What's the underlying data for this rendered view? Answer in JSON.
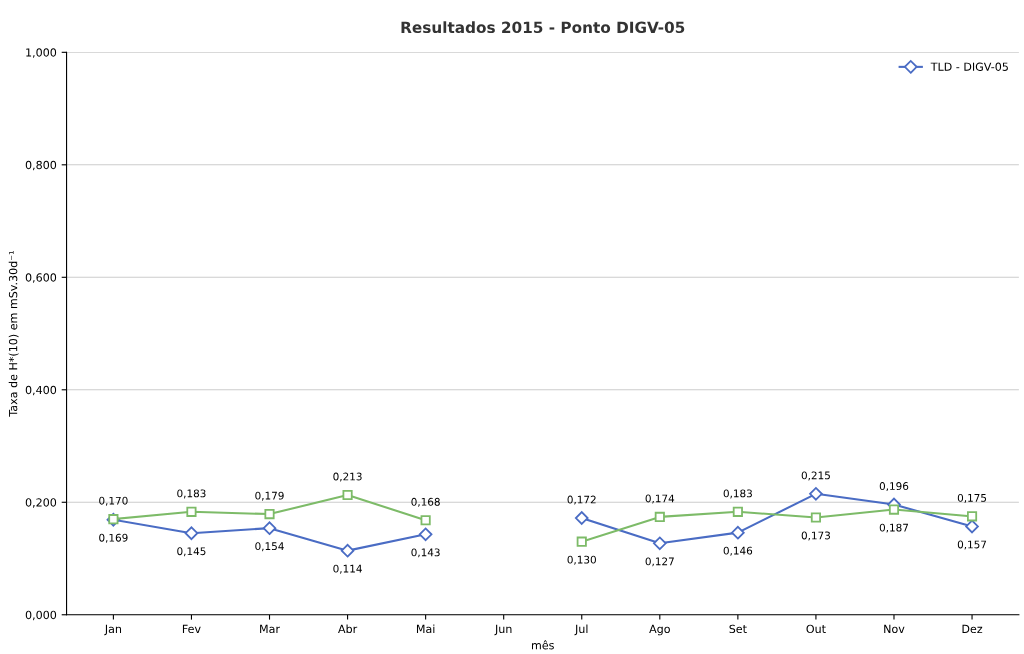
{
  "chart_data": {
    "type": "line",
    "title": "Resultados 2015 - Ponto DIGV-05",
    "xlabel": "mês",
    "ylabel": "Taxa de H*(10) em mSv.30d⁻¹",
    "categories": [
      "Jan",
      "Fev",
      "Mar",
      "Abr",
      "Mai",
      "Jun",
      "Jul",
      "Ago",
      "Set",
      "Out",
      "Nov",
      "Dez"
    ],
    "series": [
      {
        "name": "TLD - DIGV-05",
        "color": "#4a6cc4",
        "marker": "diamond",
        "values": [
          0.169,
          0.145,
          0.154,
          0.114,
          0.143,
          null,
          0.172,
          0.127,
          0.146,
          0.215,
          0.196,
          0.157
        ],
        "value_labels": [
          "0,169",
          "0,145",
          "0,154",
          "0,114",
          "0,143",
          null,
          "0,172",
          "0,127",
          "0,146",
          "0,215",
          "0,196",
          "0,157"
        ]
      },
      {
        "color": "#7dbb68",
        "marker": "square",
        "values": [
          0.17,
          0.183,
          0.179,
          0.213,
          0.168,
          null,
          0.13,
          0.174,
          0.183,
          0.173,
          0.187,
          0.175
        ],
        "value_labels": [
          "0,170",
          "0,183",
          "0,179",
          "0,213",
          "0,168",
          null,
          "0,130",
          "0,174",
          "0,183",
          "0,173",
          "0,187",
          "0,175"
        ]
      }
    ],
    "ylim": [
      0,
      1
    ],
    "yticks": [
      {
        "value": 0,
        "label": "0,000"
      },
      {
        "value": 0.2,
        "label": "0,200"
      },
      {
        "value": 0.4,
        "label": "0,400"
      },
      {
        "value": 0.6,
        "label": "0,600"
      },
      {
        "value": 0.8,
        "label": "0,800"
      },
      {
        "value": 1,
        "label": "1,000"
      }
    ],
    "grid": "y",
    "legend": "top right",
    "line_style": "solid"
  }
}
